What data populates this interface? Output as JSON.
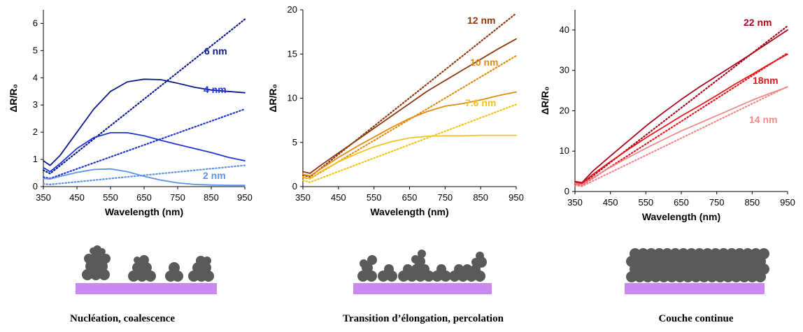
{
  "chart_data": [
    {
      "type": "line",
      "xlabel": "Wavelength (nm)",
      "ylabel": "ΔR/R₀",
      "xlim": [
        350,
        950
      ],
      "ylim": [
        0,
        6.5
      ],
      "xticks": [
        350,
        450,
        550,
        650,
        750,
        850,
        950
      ],
      "yticks": [
        0,
        1,
        2,
        3,
        4,
        5,
        6
      ],
      "series": [
        {
          "name": "6 nm",
          "color": "#0a1a8c",
          "style": "solid",
          "x": [
            350,
            370,
            400,
            450,
            500,
            550,
            600,
            650,
            700,
            750,
            800,
            850,
            900,
            950
          ],
          "y": [
            0.95,
            0.78,
            1.15,
            2.0,
            2.85,
            3.5,
            3.85,
            3.95,
            3.93,
            3.8,
            3.65,
            3.55,
            3.5,
            3.45
          ]
        },
        {
          "name": "6 nm",
          "color": "#0a1a8c",
          "style": "dotted",
          "x": [
            350,
            370,
            950
          ],
          "y": [
            0.6,
            0.48,
            6.15
          ]
        },
        {
          "name": "4 nm",
          "color": "#1f35d6",
          "style": "solid",
          "x": [
            350,
            370,
            400,
            450,
            500,
            550,
            600,
            650,
            700,
            750,
            800,
            850,
            900,
            950
          ],
          "y": [
            0.7,
            0.55,
            0.85,
            1.4,
            1.8,
            1.98,
            1.98,
            1.87,
            1.7,
            1.55,
            1.4,
            1.25,
            1.08,
            0.95
          ]
        },
        {
          "name": "4 nm",
          "color": "#1f35d6",
          "style": "dotted",
          "x": [
            350,
            370,
            950
          ],
          "y": [
            0.35,
            0.3,
            2.85
          ]
        },
        {
          "name": "2 nm",
          "color": "#5b93e5",
          "style": "solid",
          "x": [
            350,
            370,
            400,
            450,
            500,
            550,
            600,
            650,
            700,
            750,
            800,
            850,
            900,
            950
          ],
          "y": [
            0.3,
            0.28,
            0.38,
            0.52,
            0.63,
            0.65,
            0.55,
            0.38,
            0.24,
            0.14,
            0.08,
            0.06,
            0.05,
            0.05
          ]
        },
        {
          "name": "2 nm",
          "color": "#5b93e5",
          "style": "dotted",
          "x": [
            350,
            370,
            950
          ],
          "y": [
            0.1,
            0.08,
            0.78
          ]
        }
      ],
      "annotations": [
        "6 nm",
        "4 nm",
        "2 nm"
      ]
    },
    {
      "type": "line",
      "xlabel": "Wavelength (nm)",
      "ylabel": "ΔR/R₀",
      "xlim": [
        350,
        950
      ],
      "ylim": [
        0,
        20
      ],
      "xticks": [
        350,
        450,
        550,
        650,
        750,
        850,
        950
      ],
      "yticks": [
        0,
        5,
        10,
        15,
        20
      ],
      "series": [
        {
          "name": "12 nm",
          "color": "#8b3a0f",
          "style": "solid",
          "x": [
            350,
            370,
            400,
            450,
            500,
            550,
            600,
            650,
            700,
            750,
            800,
            850,
            900,
            950
          ],
          "y": [
            1.7,
            1.5,
            2.4,
            3.8,
            5.2,
            6.6,
            8.0,
            9.4,
            10.8,
            12.0,
            13.2,
            14.4,
            15.6,
            16.7
          ]
        },
        {
          "name": "12 nm",
          "color": "#8b3a0f",
          "style": "dotted",
          "x": [
            350,
            370,
            950
          ],
          "y": [
            1.3,
            1.1,
            19.6
          ]
        },
        {
          "name": "10 nm",
          "color": "#e38a12",
          "style": "solid",
          "x": [
            350,
            370,
            400,
            450,
            500,
            550,
            600,
            650,
            700,
            750,
            800,
            850,
            900,
            950
          ],
          "y": [
            1.4,
            1.2,
            2.0,
            3.3,
            4.5,
            5.6,
            6.7,
            7.7,
            8.5,
            9.1,
            9.4,
            9.8,
            10.3,
            10.7
          ]
        },
        {
          "name": "10 nm",
          "color": "#e38a12",
          "style": "dotted",
          "x": [
            350,
            370,
            950
          ],
          "y": [
            1.0,
            0.9,
            14.8
          ]
        },
        {
          "name": "7.6 nm",
          "color": "#f5c31a",
          "style": "solid",
          "x": [
            350,
            370,
            400,
            450,
            500,
            550,
            600,
            650,
            700,
            750,
            800,
            850,
            900,
            950
          ],
          "y": [
            1.1,
            0.9,
            1.7,
            2.8,
            3.7,
            4.5,
            5.1,
            5.5,
            5.7,
            5.75,
            5.75,
            5.8,
            5.8,
            5.8
          ]
        },
        {
          "name": "7.6 nm",
          "color": "#f5c31a",
          "style": "dotted",
          "x": [
            350,
            370,
            950
          ],
          "y": [
            0.7,
            0.5,
            9.3
          ]
        }
      ],
      "annotations": [
        "12 nm",
        "10 nm",
        "7.6 nm"
      ]
    },
    {
      "type": "line",
      "xlabel": "Wavelength (nm)",
      "ylabel": "ΔR/R₀",
      "xlim": [
        350,
        950
      ],
      "ylim": [
        0,
        45
      ],
      "xticks": [
        350,
        450,
        550,
        650,
        750,
        850,
        950
      ],
      "yticks": [
        0,
        10,
        20,
        30,
        40
      ],
      "series": [
        {
          "name": "22 nm",
          "color": "#a8061c",
          "style": "solid",
          "x": [
            350,
            370,
            400,
            450,
            500,
            550,
            600,
            650,
            700,
            750,
            800,
            850,
            900,
            950
          ],
          "y": [
            2.5,
            2.2,
            5.0,
            8.8,
            12.5,
            16.2,
            19.6,
            22.8,
            25.8,
            28.6,
            31.4,
            34.2,
            37.1,
            40.0
          ]
        },
        {
          "name": "22 nm",
          "color": "#a8061c",
          "style": "dotted",
          "x": [
            350,
            370,
            950
          ],
          "y": [
            2.0,
            1.8,
            41.0
          ]
        },
        {
          "name": "18nm",
          "color": "#e8141c",
          "style": "solid",
          "x": [
            350,
            370,
            400,
            450,
            500,
            550,
            600,
            650,
            700,
            750,
            800,
            850,
            900,
            950
          ],
          "y": [
            2.3,
            2.0,
            4.2,
            7.4,
            10.4,
            13.3,
            16.0,
            18.7,
            21.2,
            23.8,
            26.5,
            29.0,
            31.6,
            34.0
          ]
        },
        {
          "name": "18nm",
          "color": "#e8141c",
          "style": "dotted",
          "x": [
            350,
            370,
            950
          ],
          "y": [
            1.8,
            1.6,
            34.3
          ]
        },
        {
          "name": "14 nm",
          "color": "#f08a8a",
          "style": "solid",
          "x": [
            350,
            370,
            400,
            450,
            500,
            550,
            600,
            650,
            700,
            750,
            800,
            850,
            900,
            950
          ],
          "y": [
            2.0,
            1.7,
            3.4,
            6.0,
            8.4,
            10.7,
            12.9,
            15.0,
            16.9,
            18.8,
            20.7,
            22.6,
            24.3,
            25.9
          ]
        },
        {
          "name": "14 nm",
          "color": "#f08a8a",
          "style": "dotted",
          "x": [
            350,
            370,
            950
          ],
          "y": [
            1.5,
            1.3,
            26.0
          ]
        }
      ],
      "annotations": [
        "22 nm",
        "18nm",
        "14 nm"
      ]
    }
  ],
  "stages": [
    {
      "label": "Nucléation, coalescence"
    },
    {
      "label": "Transition d’élongation, percolation"
    },
    {
      "label": "Couche continue"
    }
  ],
  "colors": {
    "substrate": "#c88af0",
    "particle": "#5a5a5a",
    "axis": "#000000"
  }
}
